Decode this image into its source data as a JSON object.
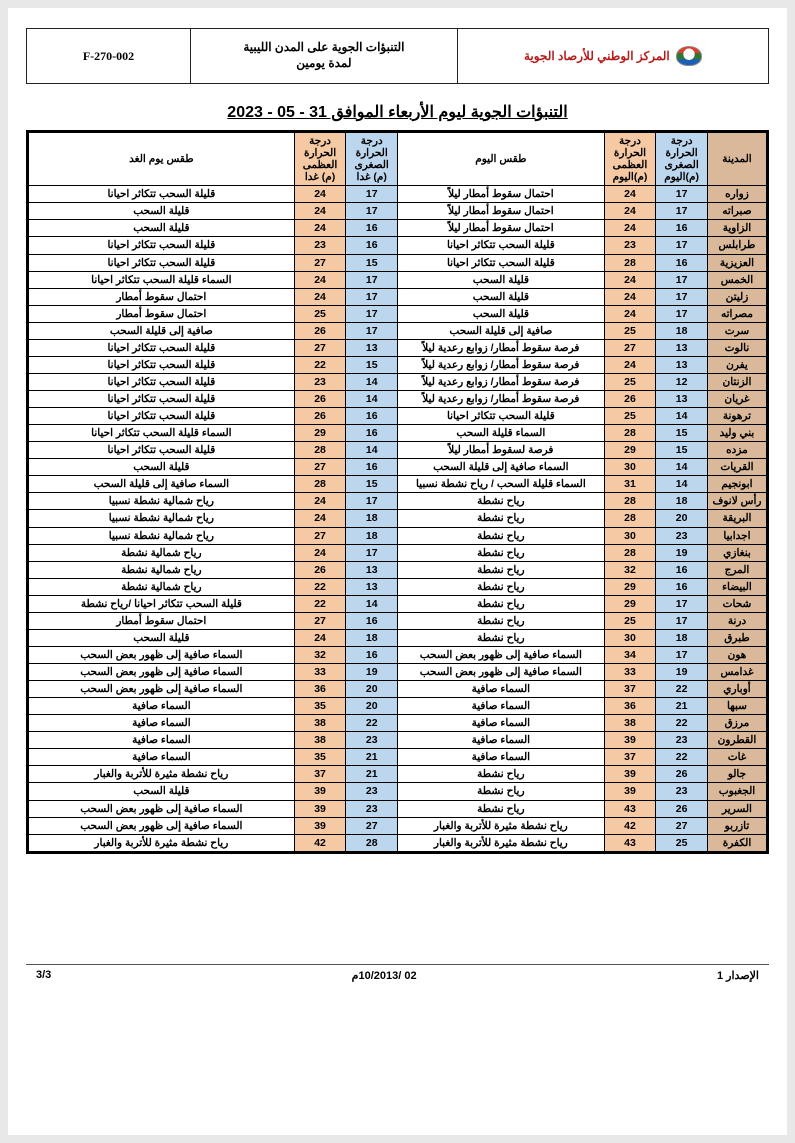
{
  "header": {
    "code": "F-270-002",
    "title_l1": "التنبؤات الجوية على المدن الليبية",
    "title_l2": "لمدة يومين",
    "org": "المركز الوطني للأرصاد الجوية"
  },
  "main_title": "التنبؤات الجوية ليوم الأربعاء الموافق 31 - 05 - 2023",
  "columns": {
    "city": "المدينة",
    "minToday_l1": "درجة",
    "minToday_l2": "الحرارة",
    "minToday_l3": "الصغرى",
    "minToday_l4": "(م)اليوم",
    "maxToday_l1": "درجة",
    "maxToday_l2": "الحرارة",
    "maxToday_l3": "العظمى",
    "maxToday_l4": "(م)اليوم",
    "cond": "طقس اليوم",
    "minNext_l1": "درجة",
    "minNext_l2": "الحرارة",
    "minNext_l3": "الصغرى",
    "minNext_l4": "(م) غدا",
    "maxNext_l1": "درجة",
    "maxNext_l2": "الحرارة",
    "maxNext_l3": "العظمى",
    "maxNext_l4": "(م) غدا",
    "next": "طقس يوم الغد"
  },
  "rows": [
    {
      "city": "زواره",
      "minT": 17,
      "maxT": 24,
      "cond": "احتمال سقوط أمطار ليلاً",
      "minN": 17,
      "maxN": 24,
      "next": "قليلة السحب تتكاثر احيانا"
    },
    {
      "city": "صبراته",
      "minT": 17,
      "maxT": 24,
      "cond": "احتمال سقوط أمطار ليلاً",
      "minN": 17,
      "maxN": 24,
      "next": "قليلة السحب"
    },
    {
      "city": "الزاوية",
      "minT": 16,
      "maxT": 24,
      "cond": "احتمال سقوط أمطار ليلاً",
      "minN": 16,
      "maxN": 24,
      "next": "قليلة السحب"
    },
    {
      "city": "طرابلس",
      "minT": 17,
      "maxT": 23,
      "cond": "قليلة السحب تتكاثر احيانا",
      "minN": 16,
      "maxN": 23,
      "next": "قليلة السحب تتكاثر احيانا"
    },
    {
      "city": "العزيزية",
      "minT": 16,
      "maxT": 28,
      "cond": "قليلة السحب تتكاثر احيانا",
      "minN": 15,
      "maxN": 27,
      "next": "قليلة السحب تتكاثر احيانا"
    },
    {
      "city": "الخمس",
      "minT": 17,
      "maxT": 24,
      "cond": "قليلة السحب",
      "minN": 17,
      "maxN": 24,
      "next": "السماء قليلة السحب تتكاثر احيانا"
    },
    {
      "city": "زليتن",
      "minT": 17,
      "maxT": 24,
      "cond": "قليلة السحب",
      "minN": 17,
      "maxN": 24,
      "next": "احتمال سقوط أمطار"
    },
    {
      "city": "مصراته",
      "minT": 17,
      "maxT": 24,
      "cond": "قليلة السحب",
      "minN": 17,
      "maxN": 25,
      "next": "احتمال سقوط أمطار"
    },
    {
      "city": "سرت",
      "minT": 18,
      "maxT": 25,
      "cond": "صافية إلى قليلة السحب",
      "minN": 17,
      "maxN": 26,
      "next": "صافية إلى قليلة السحب"
    },
    {
      "city": "نالوت",
      "minT": 13,
      "maxT": 27,
      "cond": "فرصة سقوط أمطار/ زوابع رعدية ليلاً",
      "minN": 13,
      "maxN": 27,
      "next": "قليلة السحب تتكاثر احيانا"
    },
    {
      "city": "يفرن",
      "minT": 13,
      "maxT": 24,
      "cond": "فرصة سقوط أمطار/ زوابع رعدية ليلاً",
      "minN": 15,
      "maxN": 22,
      "next": "قليلة السحب تتكاثر احيانا"
    },
    {
      "city": "الزنتان",
      "minT": 12,
      "maxT": 25,
      "cond": "فرصة سقوط أمطار/ زوابع رعدية ليلاً",
      "minN": 14,
      "maxN": 23,
      "next": "قليلة السحب تتكاثر احيانا"
    },
    {
      "city": "غريان",
      "minT": 13,
      "maxT": 26,
      "cond": "فرصة سقوط أمطار/ زوابع رعدية ليلاً",
      "minN": 14,
      "maxN": 26,
      "next": "قليلة السحب تتكاثر احيانا"
    },
    {
      "city": "ترهونة",
      "minT": 14,
      "maxT": 25,
      "cond": "قليلة السحب تتكاثر احيانا",
      "minN": 16,
      "maxN": 26,
      "next": "قليلة السحب تتكاثر احيانا"
    },
    {
      "city": "بني وليد",
      "minT": 15,
      "maxT": 28,
      "cond": "السماء قليلة السحب",
      "minN": 16,
      "maxN": 29,
      "next": "السماء قليلة السحب تتكاثر احيانا"
    },
    {
      "city": "مزده",
      "minT": 15,
      "maxT": 29,
      "cond": "فرصة لسقوط أمطار ليلاً",
      "minN": 14,
      "maxN": 28,
      "next": "قليلة السحب تتكاثر احيانا"
    },
    {
      "city": "القريات",
      "minT": 14,
      "maxT": 30,
      "cond": "السماء صافية إلى قليلة السحب",
      "minN": 16,
      "maxN": 27,
      "next": "قليلة السحب"
    },
    {
      "city": "ابونجيم",
      "minT": 14,
      "maxT": 31,
      "cond": "السماء قليلة السحب / رياح نشطة نسبيا",
      "minN": 15,
      "maxN": 28,
      "next": "السماء صافية إلى قليلة السحب"
    },
    {
      "city": "رأس لانوف",
      "minT": 18,
      "maxT": 28,
      "cond": "رياح نشطة",
      "minN": 17,
      "maxN": 24,
      "next": "رياح شمالية نشطة نسبيا"
    },
    {
      "city": "البريقة",
      "minT": 20,
      "maxT": 28,
      "cond": "رياح نشطة",
      "minN": 18,
      "maxN": 24,
      "next": "رياح شمالية نشطة نسبيا"
    },
    {
      "city": "اجدابيا",
      "minT": 23,
      "maxT": 30,
      "cond": "رياح نشطة",
      "minN": 18,
      "maxN": 27,
      "next": "رياح شمالية نشطة نسبيا"
    },
    {
      "city": "بنغازي",
      "minT": 19,
      "maxT": 28,
      "cond": "رياح نشطة",
      "minN": 17,
      "maxN": 24,
      "next": "رياح شمالية نشطة"
    },
    {
      "city": "المرج",
      "minT": 16,
      "maxT": 32,
      "cond": "رياح نشطة",
      "minN": 13,
      "maxN": 26,
      "next": "رياح شمالية نشطة"
    },
    {
      "city": "البيضاء",
      "minT": 16,
      "maxT": 29,
      "cond": "رياح نشطة",
      "minN": 13,
      "maxN": 22,
      "next": "رياح شمالية نشطة"
    },
    {
      "city": "شحات",
      "minT": 17,
      "maxT": 29,
      "cond": "رياح نشطة",
      "minN": 14,
      "maxN": 22,
      "next": "قليلة السحب تتكاثر احيانا /رياح نشطة"
    },
    {
      "city": "درنة",
      "minT": 17,
      "maxT": 25,
      "cond": "رياح نشطة",
      "minN": 16,
      "maxN": 27,
      "next": "احتمال سقوط أمطار"
    },
    {
      "city": "طبرق",
      "minT": 18,
      "maxT": 30,
      "cond": "رياح نشطة",
      "minN": 18,
      "maxN": 24,
      "next": "قليلة السحب"
    },
    {
      "city": "هون",
      "minT": 17,
      "maxT": 34,
      "cond": "السماء صافية إلى ظهور بعض السحب",
      "minN": 16,
      "maxN": 32,
      "next": "السماء صافية إلى ظهور بعض السحب"
    },
    {
      "city": "غدامس",
      "minT": 19,
      "maxT": 33,
      "cond": "السماء صافية إلى ظهور بعض السحب",
      "minN": 19,
      "maxN": 33,
      "next": "السماء صافية إلى ظهور بعض السحب"
    },
    {
      "city": "أوباري",
      "minT": 22,
      "maxT": 37,
      "cond": "السماء صافية",
      "minN": 20,
      "maxN": 36,
      "next": "السماء صافية إلى ظهور بعض السحب"
    },
    {
      "city": "سبها",
      "minT": 21,
      "maxT": 36,
      "cond": "السماء صافية",
      "minN": 20,
      "maxN": 35,
      "next": "السماء صافية"
    },
    {
      "city": "مرزق",
      "minT": 22,
      "maxT": 38,
      "cond": "السماء صافية",
      "minN": 22,
      "maxN": 38,
      "next": "السماء صافية"
    },
    {
      "city": "القطرون",
      "minT": 23,
      "maxT": 39,
      "cond": "السماء صافية",
      "minN": 23,
      "maxN": 38,
      "next": "السماء صافية"
    },
    {
      "city": "غات",
      "minT": 22,
      "maxT": 37,
      "cond": "السماء صافية",
      "minN": 21,
      "maxN": 35,
      "next": "السماء صافية"
    },
    {
      "city": "جالو",
      "minT": 26,
      "maxT": 39,
      "cond": "رياح نشطة",
      "minN": 21,
      "maxN": 37,
      "next": "رياح نشطة مثيرة للأتربة والغبار"
    },
    {
      "city": "الجغبوب",
      "minT": 23,
      "maxT": 39,
      "cond": "رياح نشطة",
      "minN": 23,
      "maxN": 39,
      "next": "قليلة السحب"
    },
    {
      "city": "السرير",
      "minT": 26,
      "maxT": 43,
      "cond": "رياح نشطة",
      "minN": 23,
      "maxN": 39,
      "next": "السماء صافية إلى ظهور بعض السحب"
    },
    {
      "city": "تازربو",
      "minT": 27,
      "maxT": 42,
      "cond": "رياح نشطة مثيرة للأتربة والغبار",
      "minN": 27,
      "maxN": 39,
      "next": "السماء صافية إلى ظهور بعض السحب"
    },
    {
      "city": "الكفرة",
      "minT": 25,
      "maxT": 43,
      "cond": "رياح نشطة مثيرة للأتربة والغبار",
      "minN": 28,
      "maxN": 42,
      "next": "رياح نشطة مثيرة للأتربة والغبار"
    }
  ],
  "footer": {
    "issue": "الإصدار 1",
    "date": "02 /10/2013م",
    "page": "3/3"
  }
}
